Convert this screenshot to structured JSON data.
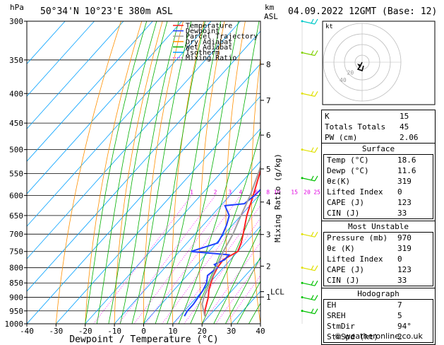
{
  "header": {
    "pressure_unit": "hPa",
    "location": "50°34'N  10°23'E  380m  ASL",
    "km_unit": "km",
    "asl_unit": "ASL",
    "datetime": "04.09.2022  12GMT  (Base: 12)"
  },
  "legend": [
    {
      "label": "Temperature",
      "color": "#ff2020",
      "style": "solid"
    },
    {
      "label": "Dewpoint",
      "color": "#2040ff",
      "style": "solid"
    },
    {
      "label": "Parcel Trajectory",
      "color": "#a0a0a0",
      "style": "solid"
    },
    {
      "label": "Dry Adiabat",
      "color": "#ff9000",
      "style": "solid"
    },
    {
      "label": "Wet Adiabat",
      "color": "#00b000",
      "style": "solid"
    },
    {
      "label": "Isotherm",
      "color": "#00a0ff",
      "style": "solid"
    },
    {
      "label": "Mixing Ratio",
      "color": "#ff00ff",
      "style": "dotted"
    }
  ],
  "axes": {
    "xlabel": "Dewpoint / Temperature (°C)",
    "ylabel_right": "Mixing Ratio (g/kg)",
    "pressure_ticks": [
      "300",
      "350",
      "400",
      "450",
      "500",
      "550",
      "600",
      "650",
      "700",
      "750",
      "800",
      "850",
      "900",
      "950",
      "1000"
    ],
    "temp_ticks": [
      "-40",
      "-30",
      "-20",
      "-10",
      "0",
      "10",
      "20",
      "30",
      "40"
    ],
    "km_ticks": [
      "8",
      "7",
      "6",
      "5",
      "4",
      "3",
      "2",
      "1"
    ],
    "lcl_label": "LCL",
    "mixing_ratio_labels": [
      "1",
      "2",
      "3",
      "4",
      "6",
      "8",
      "10",
      "15",
      "20",
      "25"
    ]
  },
  "chart_data": {
    "type": "line",
    "title": "50°34'N  10°23'E  380m  ASL",
    "xlabel": "Dewpoint / Temperature (°C)",
    "ylabel": "hPa",
    "xlim": [
      -40,
      40
    ],
    "ylim": [
      1000,
      300
    ],
    "y_scale": "log",
    "grid": true,
    "series": [
      {
        "name": "Temperature",
        "color": "#ff2020",
        "pressure": [
          970,
          950,
          925,
          900,
          875,
          850,
          825,
          800,
          775,
          750,
          725,
          700,
          650,
          600,
          550,
          500,
          450,
          400,
          350,
          300
        ],
        "values": [
          18.6,
          17.0,
          15.5,
          14.0,
          12.0,
          10.5,
          9.0,
          8.0,
          7.5,
          10.0,
          8.5,
          6.5,
          2.0,
          -2.0,
          -6.5,
          -11.5,
          -17.0,
          -23.5,
          -31.5,
          -40.5
        ]
      },
      {
        "name": "Dewpoint",
        "color": "#2040ff",
        "pressure": [
          970,
          950,
          925,
          900,
          875,
          850,
          825,
          800,
          790,
          775,
          760,
          750,
          725,
          700,
          675,
          650,
          625,
          620,
          600,
          575,
          560,
          550,
          540,
          520,
          500,
          450,
          400,
          350,
          300
        ],
        "values": [
          11.6,
          11.0,
          11.0,
          10.5,
          10.0,
          9.0,
          7.0,
          8.0,
          6.0,
          8.0,
          8.0,
          -6.0,
          0.5,
          -0.5,
          -2.0,
          -4.0,
          -8.5,
          -2.5,
          -1.5,
          -1.0,
          -3.0,
          -2.5,
          -3.0,
          -3.5,
          -4.0,
          -18.0,
          -26.0,
          -35.0,
          -44.0
        ]
      },
      {
        "name": "Parcel Trajectory",
        "color": "#a0a0a0",
        "pressure": [
          970,
          925,
          900,
          850,
          800,
          750,
          700,
          650,
          600,
          550,
          500,
          450,
          400,
          350,
          300
        ],
        "values": [
          18.6,
          14.0,
          12.5,
          10.0,
          7.5,
          5.0,
          3.0,
          0.0,
          -3.0,
          -7.0,
          -11.5,
          -17.0,
          -23.5,
          -32.0,
          -42.0
        ]
      }
    ],
    "km_levels": [
      {
        "km": "8",
        "pressure": 356
      },
      {
        "km": "7",
        "pressure": 411
      },
      {
        "km": "6",
        "pressure": 472
      },
      {
        "km": "5",
        "pressure": 540
      },
      {
        "km": "4",
        "pressure": 616
      },
      {
        "km": "3",
        "pressure": 701
      },
      {
        "km": "2",
        "pressure": 795
      },
      {
        "km": "1",
        "pressure": 899
      }
    ],
    "lcl_pressure": 880,
    "wind_barbs": [
      {
        "pressure": 300,
        "color": "#00c8c8"
      },
      {
        "pressure": 340,
        "color": "#80d000"
      },
      {
        "pressure": 400,
        "color": "#e0e000"
      },
      {
        "pressure": 500,
        "color": "#e0e000"
      },
      {
        "pressure": 560,
        "color": "#00c000"
      },
      {
        "pressure": 700,
        "color": "#e0e000"
      },
      {
        "pressure": 800,
        "color": "#e0e000"
      },
      {
        "pressure": 850,
        "color": "#00c000"
      },
      {
        "pressure": 900,
        "color": "#00c000"
      },
      {
        "pressure": 950,
        "color": "#00c000"
      }
    ]
  },
  "hodograph": {
    "label": "kt",
    "ring_labels": [
      "20",
      "40"
    ]
  },
  "indices": {
    "general": [
      {
        "label": "K",
        "value": "15"
      },
      {
        "label": "Totals Totals",
        "value": "45"
      },
      {
        "label": "PW (cm)",
        "value": "2.06"
      }
    ],
    "surface": {
      "title": "Surface",
      "rows": [
        {
          "label": "Temp (°C)",
          "value": "18.6"
        },
        {
          "label": "Dewp (°C)",
          "value": "11.6"
        },
        {
          "label": "θε(K)",
          "value": "319"
        },
        {
          "label": "Lifted Index",
          "value": "0"
        },
        {
          "label": "CAPE (J)",
          "value": "123"
        },
        {
          "label": "CIN (J)",
          "value": "33"
        }
      ]
    },
    "most_unstable": {
      "title": "Most Unstable",
      "rows": [
        {
          "label": "Pressure (mb)",
          "value": "970"
        },
        {
          "label": "θε (K)",
          "value": "319"
        },
        {
          "label": "Lifted Index",
          "value": "0"
        },
        {
          "label": "CAPE (J)",
          "value": "123"
        },
        {
          "label": "CIN (J)",
          "value": "33"
        }
      ]
    },
    "hodograph": {
      "title": "Hodograph",
      "rows": [
        {
          "label": "EH",
          "value": "7"
        },
        {
          "label": "SREH",
          "value": "5"
        },
        {
          "label": "StmDir",
          "value": "94°"
        },
        {
          "label": "StmSpd (kt)",
          "value": "2"
        }
      ]
    }
  },
  "footer": "© weatheronline.co.uk"
}
